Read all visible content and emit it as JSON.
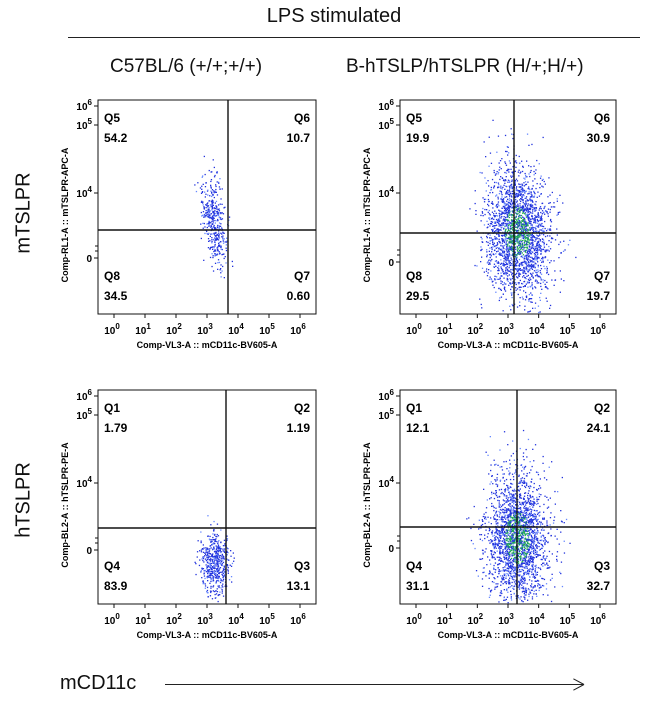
{
  "header": {
    "title": "LPS stimulated",
    "col_left": "C57BL/6 (+/+;+/+)",
    "col_right": "B-hTSLP/hTSLPR (H/+;H/+)",
    "row_top": "mTSLPR",
    "row_bottom": "hTSLPR",
    "x_arrow_label": "mCD11c"
  },
  "chart_data": [
    {
      "type": "scatter",
      "panel": "mTSLPR / C57BL/6 (+/+;+/+)",
      "xlabel": "Comp-VL3-A :: mCD11c-BV605-A",
      "ylabel": "Comp-RL1-A :: mTSLPR-APC-A",
      "x_tick_labels": [
        "10^0",
        "10^1",
        "10^2",
        "10^3",
        "10^4",
        "10^5",
        "10^6"
      ],
      "y_tick_labels": [
        "0",
        "10^4",
        "10^5",
        "10^6"
      ],
      "quadrants": [
        {
          "name": "Q5",
          "value": "54.2"
        },
        {
          "name": "Q6",
          "value": "10.7"
        },
        {
          "name": "Q8",
          "value": "34.5"
        },
        {
          "name": "Q7",
          "value": "0.60"
        }
      ],
      "density": "sparse",
      "colors": {
        "points": "#2233dd"
      }
    },
    {
      "type": "scatter",
      "panel": "mTSLPR / B-hTSLP/hTSLPR (H/+;H/+)",
      "xlabel": "Comp-VL3-A :: mCD11c-BV605-A",
      "ylabel": "Comp-RL1-A :: mTSLPR-APC-A",
      "x_tick_labels": [
        "10^0",
        "10^1",
        "10^2",
        "10^3",
        "10^4",
        "10^5",
        "10^6"
      ],
      "y_tick_labels": [
        "0",
        "10^4",
        "10^5",
        "10^6"
      ],
      "quadrants": [
        {
          "name": "Q5",
          "value": "19.9"
        },
        {
          "name": "Q6",
          "value": "30.9"
        },
        {
          "name": "Q8",
          "value": "29.5"
        },
        {
          "name": "Q7",
          "value": "19.7"
        }
      ],
      "density": "dense",
      "colors": {
        "points": "#2233dd",
        "dense_points": "#22aa55"
      }
    },
    {
      "type": "scatter",
      "panel": "hTSLPR / C57BL/6 (+/+;+/+)",
      "xlabel": "Comp-VL3-A :: mCD11c-BV605-A",
      "ylabel": "Comp-BL2-A :: hTSLPR-PE-A",
      "x_tick_labels": [
        "10^0",
        "10^1",
        "10^2",
        "10^3",
        "10^4",
        "10^5",
        "10^6"
      ],
      "y_tick_labels": [
        "0",
        "10^4",
        "10^5",
        "10^6"
      ],
      "quadrants": [
        {
          "name": "Q1",
          "value": "1.79"
        },
        {
          "name": "Q2",
          "value": "1.19"
        },
        {
          "name": "Q4",
          "value": "83.9"
        },
        {
          "name": "Q3",
          "value": "13.1"
        }
      ],
      "density": "sparse",
      "colors": {
        "points": "#2233dd"
      }
    },
    {
      "type": "scatter",
      "panel": "hTSLPR / B-hTSLP/hTSLPR (H/+;H/+)",
      "xlabel": "Comp-VL3-A :: mCD11c-BV605-A",
      "ylabel": "Comp-BL2-A :: hTSLPR-PE-A",
      "x_tick_labels": [
        "10^0",
        "10^1",
        "10^2",
        "10^3",
        "10^4",
        "10^5",
        "10^6"
      ],
      "y_tick_labels": [
        "0",
        "10^4",
        "10^5",
        "10^6"
      ],
      "quadrants": [
        {
          "name": "Q1",
          "value": "12.1"
        },
        {
          "name": "Q2",
          "value": "24.1"
        },
        {
          "name": "Q4",
          "value": "31.1"
        },
        {
          "name": "Q3",
          "value": "32.7"
        }
      ],
      "density": "dense",
      "colors": {
        "points": "#2233dd",
        "dense_points": "#22aa55"
      }
    }
  ]
}
